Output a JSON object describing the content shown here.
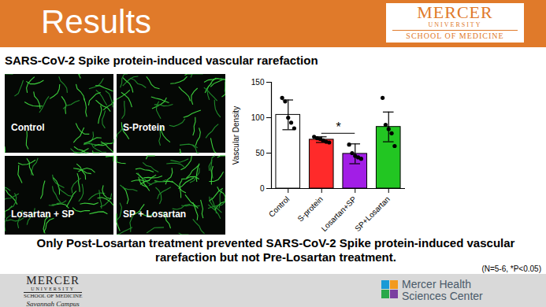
{
  "header": {
    "title": "Results",
    "logo": {
      "name": "MERCER",
      "sub": "UNIVERSITY",
      "school": "SCHOOL OF MEDICINE"
    }
  },
  "subtitle": "SARS-CoV-2 Spike protein-induced vascular rarefaction",
  "images": [
    "Control",
    "S-Protein",
    "Losartan + SP",
    "SP + Losartan"
  ],
  "chart_data": {
    "type": "bar",
    "categories": [
      "Control",
      "S-protein",
      "Losartan+SP",
      "SP+Losartan"
    ],
    "values": [
      104,
      69,
      49,
      87
    ],
    "error": [
      21,
      4,
      14,
      21
    ],
    "points": [
      [
        128,
        123,
        100,
        93,
        85
      ],
      [
        73,
        71,
        70,
        68,
        66,
        65
      ],
      [
        62,
        50,
        46,
        44,
        42
      ],
      [
        128,
        90,
        84,
        78,
        60
      ]
    ],
    "colors": [
      "#ffffff",
      "#ff2a2a",
      "#a21ee6",
      "#22c622"
    ],
    "y_label": "Vascular Density",
    "ylim": [
      0,
      150
    ],
    "yticks": [
      0,
      50,
      100,
      150
    ],
    "marker": "circle",
    "annotations": [
      {
        "text": "*",
        "from": "S-protein",
        "to": "Losartan+SP",
        "y": 78
      }
    ]
  },
  "caption": "Only Post-Losartan treatment prevented SARS-CoV-2 Spike protein-induced vascular rarefaction but not Pre-Losartan treatment.",
  "note": "(N=5-6, *P<0.05)",
  "footer": {
    "left": {
      "name": "MERCER",
      "sub": "UNIVERSITY",
      "school": "SCHOOL OF MEDICINE",
      "campus": "Savannah Campus"
    },
    "right": [
      "Mercer Health",
      "Sciences Center"
    ]
  }
}
